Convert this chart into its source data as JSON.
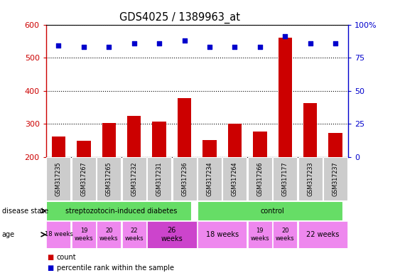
{
  "title": "GDS4025 / 1389963_at",
  "samples": [
    "GSM317235",
    "GSM317267",
    "GSM317265",
    "GSM317232",
    "GSM317231",
    "GSM317236",
    "GSM317234",
    "GSM317264",
    "GSM317266",
    "GSM317177",
    "GSM317233",
    "GSM317237"
  ],
  "counts": [
    262,
    248,
    302,
    325,
    308,
    378,
    252,
    300,
    276,
    560,
    362,
    272
  ],
  "percentile_ranks": [
    84,
    83,
    83,
    86,
    86,
    88,
    83,
    83,
    83,
    91,
    86,
    86
  ],
  "ylim_left": [
    200,
    600
  ],
  "ylim_right": [
    0,
    100
  ],
  "yticks_left": [
    200,
    300,
    400,
    500,
    600
  ],
  "yticks_right": [
    0,
    25,
    50,
    75,
    100
  ],
  "bar_color": "#cc0000",
  "scatter_color": "#0000cc",
  "label_bg_color": "#cccccc",
  "disease_color": "#66dd66",
  "age_color_normal": "#ee88ee",
  "age_color_dark": "#cc44cc",
  "legend_count_color": "#cc0000",
  "legend_percentile_color": "#0000cc",
  "age_sections": [
    {
      "start": 0,
      "end": 0,
      "label": "18 weeks",
      "dark": false
    },
    {
      "start": 1,
      "end": 1,
      "label": "19\nweeks",
      "dark": false
    },
    {
      "start": 2,
      "end": 2,
      "label": "20\nweeks",
      "dark": false
    },
    {
      "start": 3,
      "end": 3,
      "label": "22\nweeks",
      "dark": false
    },
    {
      "start": 4,
      "end": 5,
      "label": "26\nweeks",
      "dark": true
    },
    {
      "start": 6,
      "end": 7,
      "label": "18 weeks",
      "dark": false
    },
    {
      "start": 8,
      "end": 8,
      "label": "19\nweeks",
      "dark": false
    },
    {
      "start": 9,
      "end": 9,
      "label": "20\nweeks",
      "dark": false
    },
    {
      "start": 10,
      "end": 11,
      "label": "22 weeks",
      "dark": false
    }
  ]
}
